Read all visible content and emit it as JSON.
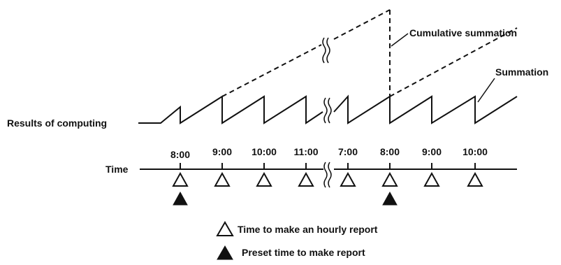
{
  "labels": {
    "results_of_computing": "Results of computing",
    "time": "Time",
    "cumulative_summation": "Cumulative summation",
    "summation": "Summation"
  },
  "time_ticks": [
    "8:00",
    "9:00",
    "10:00",
    "11:00",
    "7:00",
    "8:00",
    "9:00",
    "10:00"
  ],
  "legend": {
    "hourly_report": "Time to make an hourly report",
    "preset_report": "Preset time to make report"
  },
  "colors": {
    "ink": "#111111",
    "background": "#ffffff"
  }
}
